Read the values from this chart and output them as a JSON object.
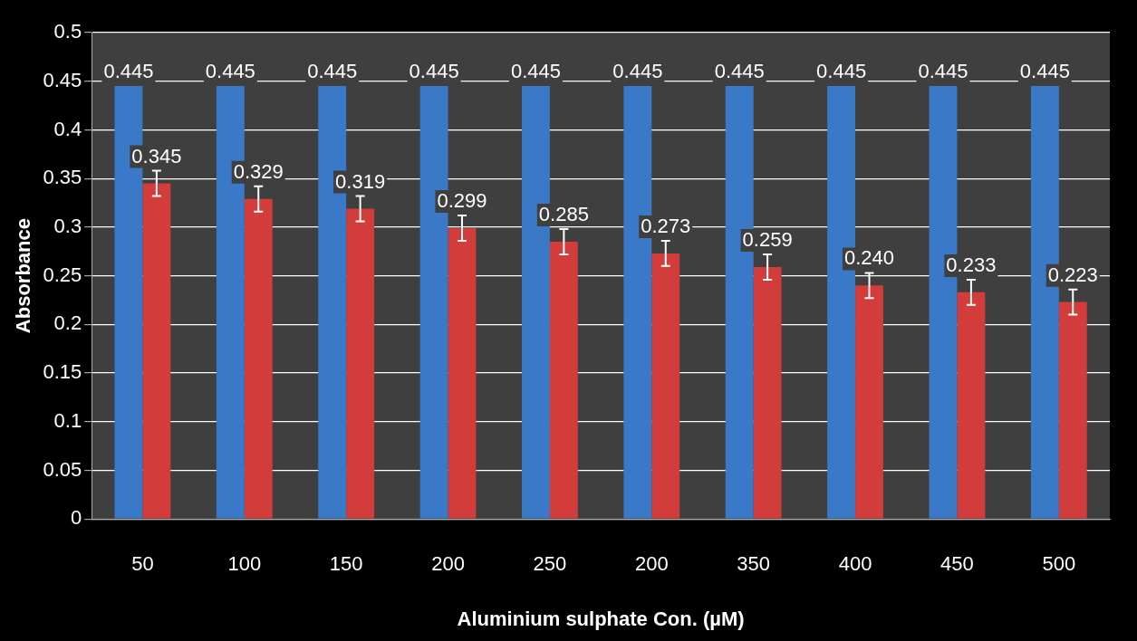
{
  "chart_data": {
    "type": "bar",
    "xlabel": "Aluminium sulphate Con. (µM)",
    "ylabel": "Absorbance",
    "categories": [
      "50",
      "100",
      "150",
      "200",
      "250",
      "200",
      "350",
      "400",
      "450",
      "500"
    ],
    "series": [
      {
        "color": "#3a78c8",
        "values": [
          0.445,
          0.445,
          0.445,
          0.445,
          0.445,
          0.445,
          0.445,
          0.445,
          0.445,
          0.445
        ],
        "value_labels": [
          "0.445",
          "0.445",
          "0.445",
          "0.445",
          "0.445",
          "0.445",
          "0.445",
          "0.445",
          "0.445",
          "0.445"
        ]
      },
      {
        "color": "#d23c3a",
        "values": [
          0.345,
          0.329,
          0.319,
          0.299,
          0.285,
          0.273,
          0.259,
          0.24,
          0.233,
          0.223
        ],
        "value_labels": [
          "0.345",
          "0.329",
          "0.319",
          "0.299",
          "0.285",
          "0.273",
          "0.259",
          "0.240",
          "0.233",
          "0.223"
        ],
        "errors": [
          0.013,
          0.013,
          0.013,
          0.013,
          0.013,
          0.013,
          0.013,
          0.013,
          0.013,
          0.013
        ]
      }
    ],
    "ylim": [
      0,
      0.5
    ],
    "yticks": [
      0,
      0.05,
      0.1,
      0.15,
      0.2,
      0.25,
      0.3,
      0.35,
      0.4,
      0.45,
      0.5
    ],
    "grid": "y",
    "legend": false
  }
}
